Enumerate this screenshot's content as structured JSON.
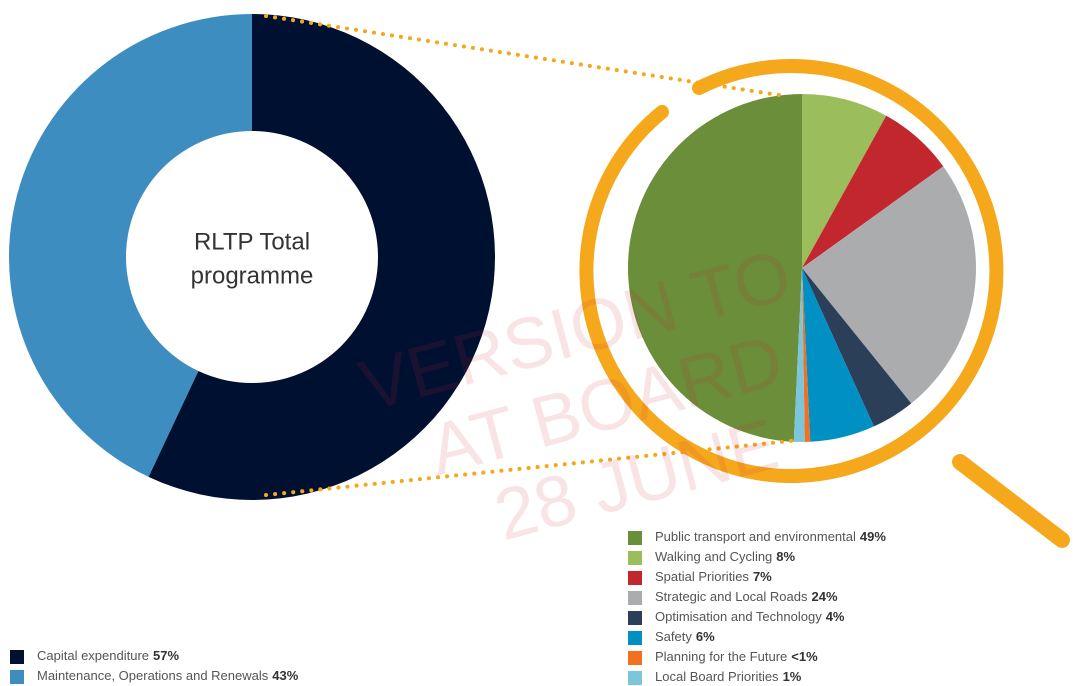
{
  "chart_data": [
    {
      "type": "donut",
      "center_label": [
        "RLTP Total",
        "programme"
      ],
      "categories": [
        "Capital expenditure",
        "Maintenance, Operations and Renewals"
      ],
      "values": [
        57,
        43
      ],
      "value_labels": [
        "57%",
        "43%"
      ],
      "colors": [
        "#001030",
        "#3d8dc0"
      ]
    },
    {
      "type": "pie",
      "categories": [
        "Public transport and environmental",
        "Walking and Cycling",
        "Spatial Priorities",
        "Strategic and Local Roads",
        "Optimisation and Technology",
        "Safety",
        "Planning for the Future",
        "Local Board Priorities"
      ],
      "values": [
        49,
        8,
        7,
        24,
        4,
        6,
        0.5,
        1
      ],
      "value_labels": [
        "49%",
        "8%",
        "7%",
        "24%",
        "4%",
        "6%",
        "<1%",
        "1%"
      ],
      "colors": [
        "#6a8e3a",
        "#9bbd5c",
        "#c1272d",
        "#abacae",
        "#2b3f58",
        "#0090c4",
        "#f37021",
        "#7cc6dc"
      ]
    }
  ],
  "watermark": [
    "VERSION TO",
    "AT BOARD",
    "28 JUNE"
  ]
}
